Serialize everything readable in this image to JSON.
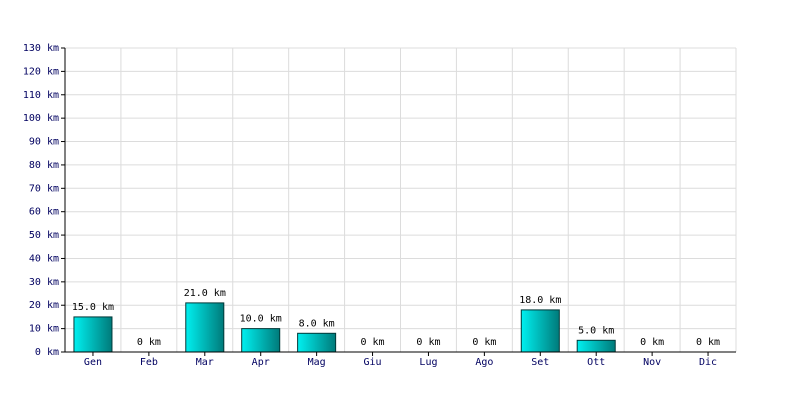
{
  "chart_data": {
    "type": "bar",
    "categories": [
      "Gen",
      "Feb",
      "Mar",
      "Apr",
      "Mag",
      "Giu",
      "Lug",
      "Ago",
      "Set",
      "Ott",
      "Nov",
      "Dic"
    ],
    "values": [
      15,
      0,
      21,
      10,
      8,
      0,
      0,
      0,
      18,
      5,
      0,
      0
    ],
    "value_labels": [
      "15.0 km",
      "0 km",
      "21.0 km",
      "10.0 km",
      "8.0 km",
      "0 km",
      "0 km",
      "0 km",
      "18.0 km",
      "5.0 km",
      "0 km",
      "0 km"
    ],
    "color": "#00c8c8",
    "ylim": [
      0,
      130
    ],
    "yticks": [
      {
        "value": 0,
        "label": "0 km"
      },
      {
        "value": 10,
        "label": "10 km"
      },
      {
        "value": 20,
        "label": "20 km"
      },
      {
        "value": 30,
        "label": "30 km"
      },
      {
        "value": 40,
        "label": "40 km"
      },
      {
        "value": 50,
        "label": "50 km"
      },
      {
        "value": 60,
        "label": "60 km"
      },
      {
        "value": 70,
        "label": "70 km"
      },
      {
        "value": 80,
        "label": "80 km"
      },
      {
        "value": 90,
        "label": "90 km"
      },
      {
        "value": 100,
        "label": "100 km"
      },
      {
        "value": 110,
        "label": "110 km"
      },
      {
        "value": 120,
        "label": "120 km"
      },
      {
        "value": 130,
        "label": "130 km"
      }
    ],
    "grid": true
  }
}
